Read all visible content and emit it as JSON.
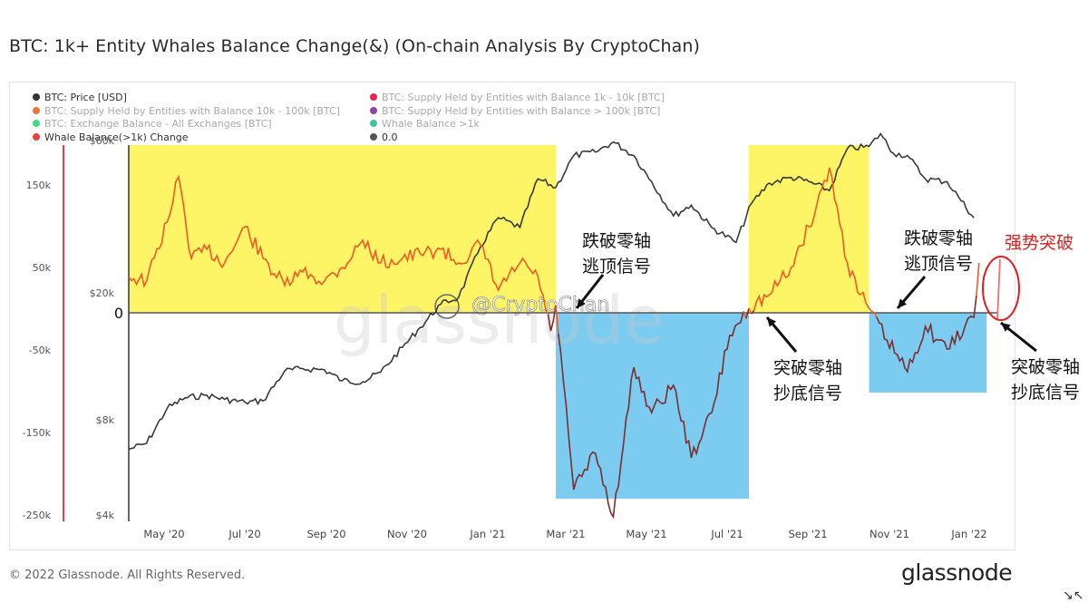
{
  "title": "BTC: 1k+ Entity Whales Balance Change(&) (On-chain Analysis By CryptoChan)",
  "legend": [
    {
      "label": "BTC: Price [USD]",
      "color": "#333333",
      "faded": false
    },
    {
      "label": "BTC: Supply Held by Entities with Balance 1k - 10k [BTC]",
      "color": "#e8254f",
      "faded": true
    },
    {
      "label": "BTC: Supply Held by Entities with Balance 10k - 100k [BTC]",
      "color": "#e8763a",
      "faded": true
    },
    {
      "label": "BTC: Supply Held by Entities with Balance > 100k [BTC]",
      "color": "#8e44ad",
      "faded": true
    },
    {
      "label": "BTC: Exchange Balance - All Exchanges [BTC]",
      "color": "#42d989",
      "faded": true
    },
    {
      "label": "Whale Balance >1k",
      "color": "#43c49a",
      "faded": true
    },
    {
      "label": "Whale Balance(>1k) Change",
      "color": "#e84040",
      "faded": false
    },
    {
      "label": "0.0",
      "color": "#555555",
      "faded": false
    }
  ],
  "copyright": "© 2022 Glassnode. All Rights Reserved.",
  "brand": "glassnode",
  "watermark": {
    "text": "glassnode",
    "weibo": "@CryptoChan"
  },
  "colors": {
    "price": "#3a3a3a",
    "change": "#f05a24",
    "change_negative": "#7a2e2e",
    "bull_zone": "#fdf466",
    "bear_zone": "#7ccbf0",
    "accent_red": "#e02020"
  },
  "annotations": [
    {
      "lines": [
        "跌破零轴",
        "逃顶信号"
      ],
      "color": "#111111"
    },
    {
      "lines": [
        "突破零轴",
        "抄底信号"
      ],
      "color": "#111111"
    },
    {
      "lines": [
        "跌破零轴",
        "逃顶信号"
      ],
      "color": "#111111"
    },
    {
      "lines": [
        "突破零轴",
        "抄底信号"
      ],
      "color": "#111111"
    },
    {
      "lines": [
        "强势突破"
      ],
      "color": "#e02020"
    }
  ],
  "chart_data": {
    "type": "line",
    "title": "BTC: 1k+ Entity Whales Balance Change(&) (On-chain Analysis By CryptoChan)",
    "x_ticks": [
      "May '20",
      "Jul '20",
      "Sep '20",
      "Nov '20",
      "Jan '21",
      "Mar '21",
      "May '21",
      "Jul '21",
      "Sep '21",
      "Nov '21",
      "Jan '22"
    ],
    "left_axis": {
      "ticks": [
        "150k",
        "50k",
        "0",
        "-50k",
        "-150k",
        "-250k"
      ],
      "range": [
        -250000,
        200000
      ]
    },
    "right_axis": {
      "ticks": [
        "$60k",
        "$20k",
        "$8k",
        "$4k"
      ],
      "scale": "log"
    },
    "zero_label": "0",
    "zones": [
      {
        "type": "bull",
        "from": "2020-04-01",
        "to": "2021-03-01"
      },
      {
        "type": "bear",
        "from": "2021-03-01",
        "to": "2021-07-30"
      },
      {
        "type": "bull",
        "from": "2021-07-30",
        "to": "2021-11-01"
      },
      {
        "type": "bear",
        "from": "2021-11-01",
        "to": "2022-02-01"
      }
    ],
    "series": [
      {
        "name": "BTC: Price [USD]",
        "axis": "right",
        "points": [
          [
            "2020-04-01",
            6500
          ],
          [
            "2020-04-15",
            6800
          ],
          [
            "2020-05-01",
            8800
          ],
          [
            "2020-05-15",
            9500
          ],
          [
            "2020-06-01",
            9700
          ],
          [
            "2020-06-15",
            9400
          ],
          [
            "2020-07-01",
            9200
          ],
          [
            "2020-07-15",
            9300
          ],
          [
            "2020-08-01",
            11600
          ],
          [
            "2020-08-15",
            11800
          ],
          [
            "2020-09-01",
            11700
          ],
          [
            "2020-09-15",
            10800
          ],
          [
            "2020-10-01",
            10700
          ],
          [
            "2020-10-15",
            11500
          ],
          [
            "2020-11-01",
            13800
          ],
          [
            "2020-11-15",
            16000
          ],
          [
            "2020-12-01",
            19000
          ],
          [
            "2020-12-15",
            20000
          ],
          [
            "2021-01-01",
            29000
          ],
          [
            "2021-01-15",
            36000
          ],
          [
            "2021-02-01",
            33500
          ],
          [
            "2021-02-15",
            48000
          ],
          [
            "2021-03-01",
            45000
          ],
          [
            "2021-03-15",
            57000
          ],
          [
            "2021-04-01",
            58500
          ],
          [
            "2021-04-15",
            63000
          ],
          [
            "2021-05-01",
            57000
          ],
          [
            "2021-05-15",
            47000
          ],
          [
            "2021-06-01",
            36500
          ],
          [
            "2021-06-15",
            39500
          ],
          [
            "2021-07-01",
            33500
          ],
          [
            "2021-07-20",
            30000
          ],
          [
            "2021-08-01",
            40000
          ],
          [
            "2021-08-15",
            46500
          ],
          [
            "2021-09-01",
            48500
          ],
          [
            "2021-09-15",
            47000
          ],
          [
            "2021-10-01",
            44000
          ],
          [
            "2021-10-15",
            60000
          ],
          [
            "2021-11-01",
            61000
          ],
          [
            "2021-11-10",
            67000
          ],
          [
            "2021-11-20",
            58000
          ],
          [
            "2021-12-01",
            57000
          ],
          [
            "2021-12-15",
            48000
          ],
          [
            "2022-01-01",
            47000
          ],
          [
            "2022-01-10",
            42000
          ],
          [
            "2022-01-22",
            36000
          ]
        ]
      },
      {
        "name": "Whale Balance(>1k) Change",
        "axis": "left",
        "points": [
          [
            "2020-04-01",
            40000
          ],
          [
            "2020-04-15",
            35000
          ],
          [
            "2020-05-01",
            100000
          ],
          [
            "2020-05-10",
            150000
          ],
          [
            "2020-05-20",
            60000
          ],
          [
            "2020-06-01",
            70000
          ],
          [
            "2020-06-15",
            55000
          ],
          [
            "2020-07-01",
            95000
          ],
          [
            "2020-07-15",
            60000
          ],
          [
            "2020-08-01",
            30000
          ],
          [
            "2020-08-15",
            45000
          ],
          [
            "2020-09-01",
            35000
          ],
          [
            "2020-09-15",
            50000
          ],
          [
            "2020-10-01",
            80000
          ],
          [
            "2020-10-15",
            55000
          ],
          [
            "2020-11-01",
            60000
          ],
          [
            "2020-11-15",
            65000
          ],
          [
            "2020-12-01",
            70000
          ],
          [
            "2020-12-15",
            55000
          ],
          [
            "2021-01-01",
            75000
          ],
          [
            "2021-01-15",
            25000
          ],
          [
            "2021-02-01",
            55000
          ],
          [
            "2021-02-15",
            40000
          ],
          [
            "2021-02-25",
            -20000
          ],
          [
            "2021-03-01",
            8000
          ],
          [
            "2021-03-15",
            -195000
          ],
          [
            "2021-04-01",
            -155000
          ],
          [
            "2021-04-15",
            -225000
          ],
          [
            "2021-05-01",
            -60000
          ],
          [
            "2021-05-15",
            -110000
          ],
          [
            "2021-06-01",
            -80000
          ],
          [
            "2021-06-15",
            -160000
          ],
          [
            "2021-07-01",
            -110000
          ],
          [
            "2021-07-15",
            -25000
          ],
          [
            "2021-07-30",
            5000
          ],
          [
            "2021-08-15",
            20000
          ],
          [
            "2021-09-01",
            50000
          ],
          [
            "2021-09-15",
            95000
          ],
          [
            "2021-10-01",
            160000
          ],
          [
            "2021-10-15",
            55000
          ],
          [
            "2021-10-25",
            20000
          ],
          [
            "2021-11-01",
            5000
          ],
          [
            "2021-11-15",
            -30000
          ],
          [
            "2021-12-01",
            -65000
          ],
          [
            "2021-12-15",
            -15000
          ],
          [
            "2022-01-01",
            -40000
          ],
          [
            "2022-01-15",
            -15000
          ],
          [
            "2022-01-22",
            -5000
          ],
          [
            "2022-01-26",
            55000
          ]
        ]
      }
    ]
  }
}
